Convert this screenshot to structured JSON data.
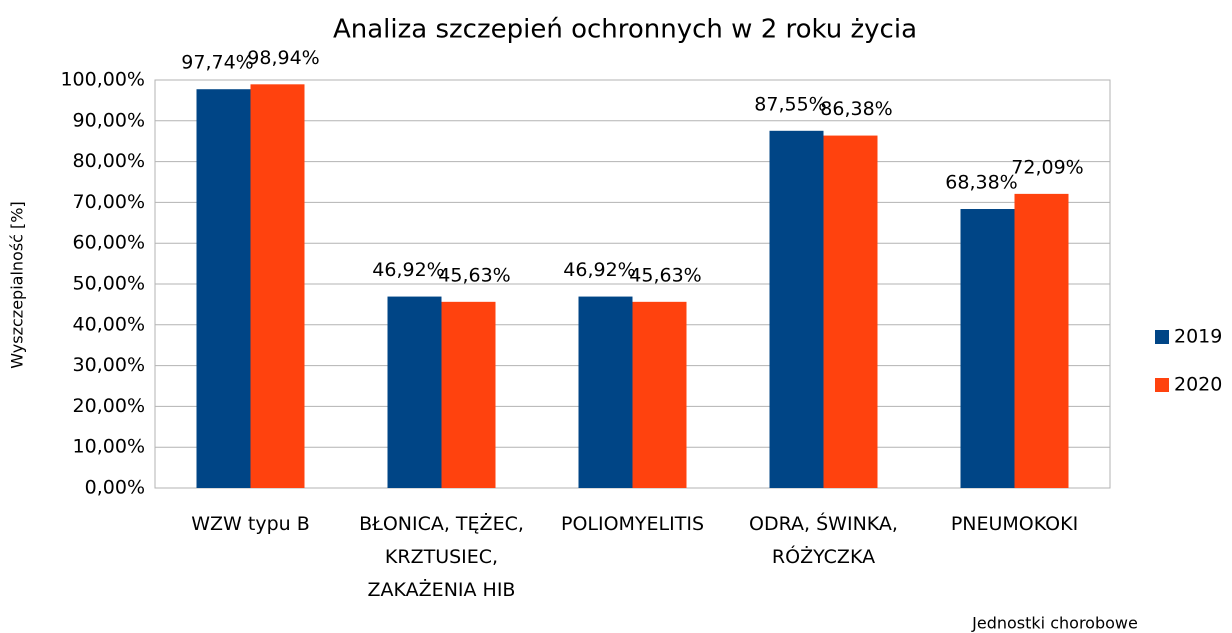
{
  "chart_data": {
    "type": "bar",
    "title": "Analiza szczepień ochronnych w 2 roku życia",
    "y_label": "Wyszczepialność [%]",
    "x_label": "Jednostki chorobowe",
    "categories": [
      "WZW typu B",
      "BŁONICA, TĘŻEC, KRZTUSIEC, ZAKAŻENIA HIB",
      "POLIOMYELITIS",
      "ODRA, ŚWINKA, RÓŻYCZKA",
      "PNEUMOKOKI"
    ],
    "series": [
      {
        "name": "2019",
        "color": "#004586",
        "values": [
          97.74,
          46.92,
          46.92,
          87.55,
          68.38
        ],
        "value_labels": [
          "97,74%",
          "46,92%",
          "46,92%",
          "87,55%",
          "68,38%"
        ]
      },
      {
        "name": "2020",
        "color": "#ff420e",
        "values": [
          98.94,
          45.63,
          45.63,
          86.38,
          72.09
        ],
        "value_labels": [
          "98,94%",
          "45,63%",
          "45,63%",
          "86,38%",
          "72,09%"
        ]
      }
    ],
    "ylim": [
      0,
      100
    ],
    "yticks": [
      {
        "value": 0,
        "label": "0,00%"
      },
      {
        "value": 10,
        "label": "10,00%"
      },
      {
        "value": 20,
        "label": "20,00%"
      },
      {
        "value": 30,
        "label": "30,00%"
      },
      {
        "value": 40,
        "label": "40,00%"
      },
      {
        "value": 50,
        "label": "50,00%"
      },
      {
        "value": 60,
        "label": "60,00%"
      },
      {
        "value": 70,
        "label": "70,00%"
      },
      {
        "value": 80,
        "label": "80,00%"
      },
      {
        "value": 90,
        "label": "90,00%"
      },
      {
        "value": 100,
        "label": "100,00%"
      }
    ],
    "grid": true,
    "legend": "right"
  }
}
